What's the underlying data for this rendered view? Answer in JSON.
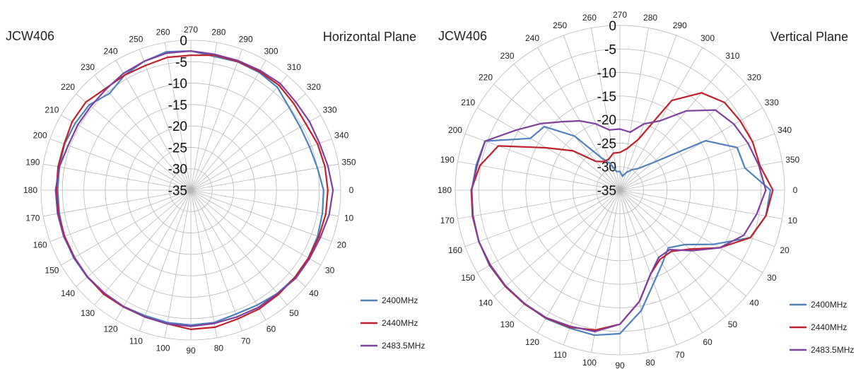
{
  "chart_data": [
    {
      "type": "polar-line",
      "title": "Horizontal Plane",
      "model": "JCW406",
      "angle_labels": [
        "0",
        "10",
        "20",
        "30",
        "40",
        "50",
        "60",
        "70",
        "80",
        "90",
        "100",
        "110",
        "120",
        "130",
        "140",
        "150",
        "160",
        "170",
        "180",
        "190",
        "200",
        "210",
        "220",
        "230",
        "240",
        "250",
        "260",
        "270",
        "280",
        "290",
        "300",
        "310",
        "320",
        "330",
        "340",
        "350"
      ],
      "radial_labels": [
        "0",
        "-5",
        "-10",
        "-15",
        "-20",
        "-25",
        "-30",
        "-35"
      ],
      "rlim": [
        -35,
        0
      ],
      "legend_position": "bottom-right",
      "angles_deg": [
        0,
        10,
        20,
        30,
        40,
        50,
        60,
        70,
        80,
        90,
        100,
        110,
        120,
        130,
        140,
        150,
        160,
        170,
        180,
        190,
        200,
        210,
        220,
        230,
        240,
        250,
        260,
        270,
        280,
        290,
        300,
        310,
        320,
        330,
        340,
        350
      ],
      "series": [
        {
          "name": "2400MHz",
          "color": "#4f81bd",
          "values": [
            -4,
            -3.8,
            -3.5,
            -3.3,
            -3.3,
            -3.5,
            -4,
            -4.2,
            -3.6,
            -3.5,
            -3.6,
            -3.8,
            -3.6,
            -3.5,
            -3.4,
            -3.4,
            -3.5,
            -3.8,
            -3.9,
            -3.8,
            -3.6,
            -3.8,
            -4,
            -5.5,
            -4,
            -3,
            -2.2,
            -2.5,
            -3.3,
            -3.1,
            -3.2,
            -3.6,
            -5,
            -5.5,
            -5.5,
            -5
          ]
        },
        {
          "name": "2440MHz",
          "color": "#c0202a",
          "values": [
            -3,
            -3,
            -3.2,
            -3.3,
            -3.3,
            -3.2,
            -3,
            -3,
            -2.5,
            -2.5,
            -3.3,
            -3.5,
            -3.5,
            -3.3,
            -3.5,
            -3.6,
            -3.6,
            -3.6,
            -3.6,
            -3.5,
            -3.5,
            -3,
            -3,
            -4,
            -4,
            -4,
            -3.5,
            -3.5,
            -3,
            -3,
            -3,
            -3,
            -3.6,
            -4,
            -3.5,
            -3.2
          ]
        },
        {
          "name": "2483.5MHz",
          "color": "#7f3f9f",
          "values": [
            -1.8,
            -2.2,
            -2.8,
            -3,
            -3,
            -3.5,
            -3.4,
            -3.5,
            -3.4,
            -3.2,
            -3.3,
            -3.5,
            -3.6,
            -3.6,
            -3.5,
            -3.5,
            -3.4,
            -3.4,
            -3.4,
            -3.8,
            -4.5,
            -4.5,
            -4.5,
            -4.2,
            -3.5,
            -3,
            -2.5,
            -2.5,
            -2.8,
            -2.8,
            -2.7,
            -2.5,
            -3,
            -3,
            -3,
            -2.5
          ]
        }
      ]
    },
    {
      "type": "polar-line",
      "title": "Vertical Plane",
      "model": "JCW406",
      "angle_labels": [
        "0",
        "10",
        "20",
        "30",
        "40",
        "50",
        "60",
        "70",
        "80",
        "90",
        "100",
        "110",
        "120",
        "130",
        "140",
        "150",
        "160",
        "170",
        "180",
        "190",
        "200",
        "210",
        "220",
        "230",
        "240",
        "250",
        "260",
        "270",
        "280",
        "290",
        "300",
        "310",
        "320",
        "330",
        "340",
        "350"
      ],
      "radial_labels": [
        "0",
        "-5",
        "-10",
        "-15",
        "-20",
        "-25",
        "-30",
        "-35"
      ],
      "rlim": [
        -35,
        0
      ],
      "legend_position": "bottom-right",
      "angles_deg": [
        0,
        10,
        20,
        30,
        40,
        50,
        60,
        70,
        80,
        90,
        100,
        110,
        120,
        130,
        140,
        150,
        160,
        170,
        180,
        190,
        200,
        210,
        220,
        230,
        240,
        250,
        260,
        270,
        280,
        290,
        300,
        310,
        320,
        330,
        340,
        350
      ],
      "series": [
        {
          "name": "2400MHz",
          "color": "#4f81bd",
          "values": [
            -3,
            -3.5,
            -5.5,
            -12,
            -17,
            -19,
            -17,
            -14,
            -9,
            -4.5,
            -3.7,
            -3.8,
            -3.5,
            -3.5,
            -3.2,
            -3,
            -3.1,
            -3.2,
            -3.5,
            -4,
            -4.5,
            -13,
            -14,
            -20,
            -27,
            -29,
            -31,
            -31,
            -32,
            -31,
            -30,
            -29,
            -26,
            -14,
            -8.5,
            -8
          ]
        },
        {
          "name": "2440MHz",
          "color": "#c0202a",
          "values": [
            -2.5,
            -3.5,
            -5.5,
            -10.5,
            -15.5,
            -18,
            -18,
            -16,
            -11,
            -6.5,
            -4.8,
            -4,
            -3.6,
            -3.4,
            -3.2,
            -3.1,
            -3.1,
            -3.2,
            -3.4,
            -4.8,
            -7.5,
            -17,
            -22,
            -27,
            -28,
            -28,
            -27,
            -27,
            -26,
            -23.5,
            -13,
            -8,
            -6,
            -5.5,
            -5,
            -4.8
          ]
        },
        {
          "name": "2483.5MHz",
          "color": "#7f3f9f",
          "values": [
            -4,
            -5.5,
            -7,
            -10.5,
            -15,
            -18.5,
            -18.5,
            -16,
            -11,
            -6.5,
            -4.5,
            -4.2,
            -3.7,
            -3.5,
            -3.3,
            -3.2,
            -3.1,
            -3.3,
            -3.5,
            -4.2,
            -4.5,
            -9.5,
            -13,
            -16,
            -18,
            -20,
            -22,
            -22,
            -22.5,
            -20,
            -18,
            -13,
            -8.5,
            -7,
            -6,
            -5
          ]
        }
      ]
    }
  ]
}
